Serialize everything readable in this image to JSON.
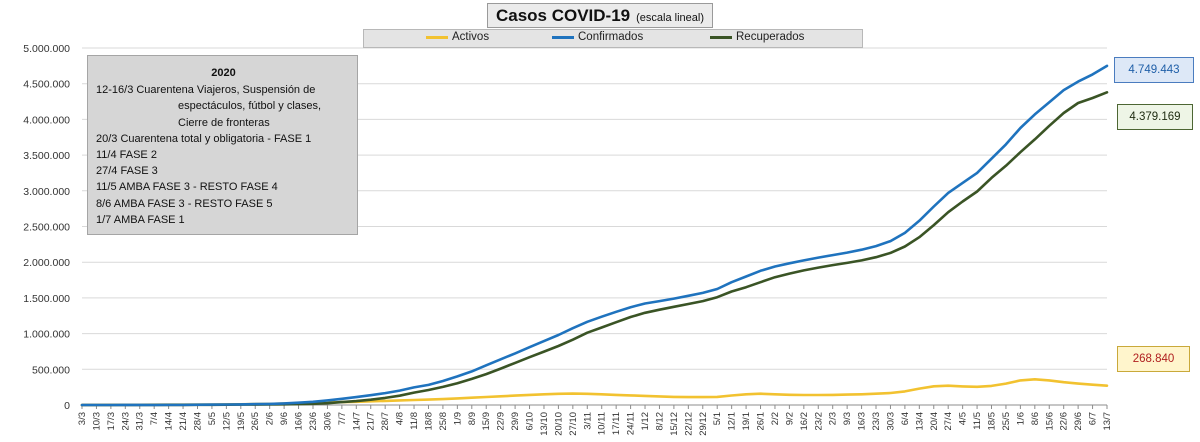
{
  "title": "Casos  COVID-19",
  "subtitle": "(escala lineal)",
  "colors": {
    "activos": "#f2c230",
    "confirmados": "#1f73be",
    "recuperados": "#3a5425",
    "confirmados_box_bg": "#dde8f7",
    "recuperados_box_bg": "#eef5e6",
    "activos_box_bg": "#fff5cc",
    "activos_value_text": "#b02020"
  },
  "annotation": {
    "year": "2020",
    "lines": [
      "12-16/3  Cuarentena Viajeros, Suspensión de",
      "espectáculos, fútbol y clases,",
      "Cierre de fronteras",
      "20/3 Cuarentena total y obligatoria - FASE 1",
      "11/4 FASE 2",
      "27/4 FASE 3",
      "11/5 AMBA FASE 3 - RESTO FASE 4",
      "8/6 AMBA FASE 3 - RESTO FASE 5",
      "1/7 AMBA FASE 1"
    ]
  },
  "callouts": {
    "confirmados": "4.749.443",
    "recuperados": "4.379.169",
    "activos": "268.840"
  },
  "chart_data": {
    "type": "line",
    "ylim": [
      0,
      5000000
    ],
    "y_ticks": [
      0,
      500000,
      1000000,
      1500000,
      2000000,
      2500000,
      3000000,
      3500000,
      4000000,
      4500000,
      5000000
    ],
    "y_tick_labels": [
      "0",
      "500.000",
      "1.000.000",
      "1.500.000",
      "2.000.000",
      "2.500.000",
      "3.000.000",
      "3.500.000",
      "4.000.000",
      "4.500.000",
      "5.000.000"
    ],
    "x_tick_labels": [
      "3/3",
      "10/3",
      "17/3",
      "24/3",
      "31/3",
      "7/4",
      "14/4",
      "21/4",
      "28/4",
      "5/5",
      "12/5",
      "19/5",
      "26/5",
      "2/6",
      "9/6",
      "16/6",
      "23/6",
      "30/6",
      "7/7",
      "14/7",
      "21/7",
      "28/7",
      "4/8",
      "11/8",
      "18/8",
      "25/8",
      "1/9",
      "8/9",
      "15/9",
      "22/9",
      "29/9",
      "6/10",
      "13/10",
      "20/10",
      "27/10",
      "3/11",
      "10/11",
      "17/11",
      "24/11",
      "1/12",
      "8/12",
      "15/12",
      "22/12",
      "29/12",
      "5/1",
      "12/1",
      "19/1",
      "26/1",
      "2/2",
      "9/2",
      "16/2",
      "23/2",
      "2/3",
      "9/3",
      "16/3",
      "23/3",
      "30/3",
      "6/4",
      "13/4",
      "20/4",
      "27/4",
      "4/5",
      "11/5",
      "18/5",
      "25/5",
      "1/6",
      "8/6",
      "15/6",
      "22/6",
      "29/6",
      "6/7",
      "13/7"
    ],
    "series": [
      {
        "name": "Activos",
        "values": [
          0,
          200,
          1200,
          2500,
          3500,
          4500,
          5500,
          6500,
          7000,
          7500,
          8500,
          10000,
          13000,
          16000,
          20000,
          25000,
          30000,
          34000,
          40000,
          45000,
          52000,
          58000,
          65000,
          70000,
          75000,
          82000,
          92000,
          102000,
          112000,
          122000,
          132000,
          142000,
          150000,
          157000,
          160000,
          157000,
          150000,
          142000,
          135000,
          128000,
          120000,
          113000,
          110000,
          110000,
          113000,
          133000,
          150000,
          158000,
          150000,
          143000,
          140000,
          140000,
          142000,
          145000,
          150000,
          158000,
          168000,
          190000,
          230000,
          262000,
          270000,
          260000,
          255000,
          268000,
          300000,
          345000,
          360000,
          345000,
          320000,
          300000,
          285000,
          270000
        ]
      },
      {
        "name": "Confirmados",
        "values": [
          1,
          50,
          300,
          800,
          1350,
          1900,
          2400,
          3400,
          4400,
          5300,
          6600,
          8300,
          12000,
          16000,
          22000,
          32000,
          45000,
          64000,
          87000,
          111000,
          137000,
          167000,
          201000,
          246000,
          282000,
          336000,
          400000,
          471000,
          556000,
          640000,
          723000,
          810000,
          895000,
          981000,
          1075000,
          1165000,
          1237000,
          1305000,
          1370000,
          1422000,
          1455000,
          1490000,
          1530000,
          1570000,
          1625000,
          1720000,
          1800000,
          1880000,
          1940000,
          1985000,
          2025000,
          2065000,
          2100000,
          2135000,
          2175000,
          2225000,
          2295000,
          2410000,
          2580000,
          2780000,
          2970000,
          3110000,
          3250000,
          3450000,
          3650000,
          3880000,
          4070000,
          4240000,
          4410000,
          4530000,
          4630000,
          4749443
        ]
      },
      {
        "name": "Recuperados",
        "values": [
          0,
          0,
          0,
          0,
          0,
          200,
          900,
          1700,
          2300,
          3100,
          4000,
          5000,
          6000,
          7500,
          9500,
          12000,
          16500,
          25000,
          40000,
          55000,
          74000,
          100000,
          130000,
          173000,
          210000,
          254000,
          306000,
          365000,
          433000,
          510000,
          590000,
          670000,
          748000,
          827000,
          915000,
          1012000,
          1085000,
          1160000,
          1232000,
          1292000,
          1335000,
          1375000,
          1415000,
          1455000,
          1510000,
          1590000,
          1650000,
          1720000,
          1790000,
          1840000,
          1885000,
          1925000,
          1960000,
          1990000,
          2025000,
          2070000,
          2130000,
          2220000,
          2350000,
          2520000,
          2700000,
          2850000,
          2990000,
          3180000,
          3350000,
          3540000,
          3720000,
          3910000,
          4090000,
          4230000,
          4300000,
          4379169
        ]
      }
    ]
  }
}
